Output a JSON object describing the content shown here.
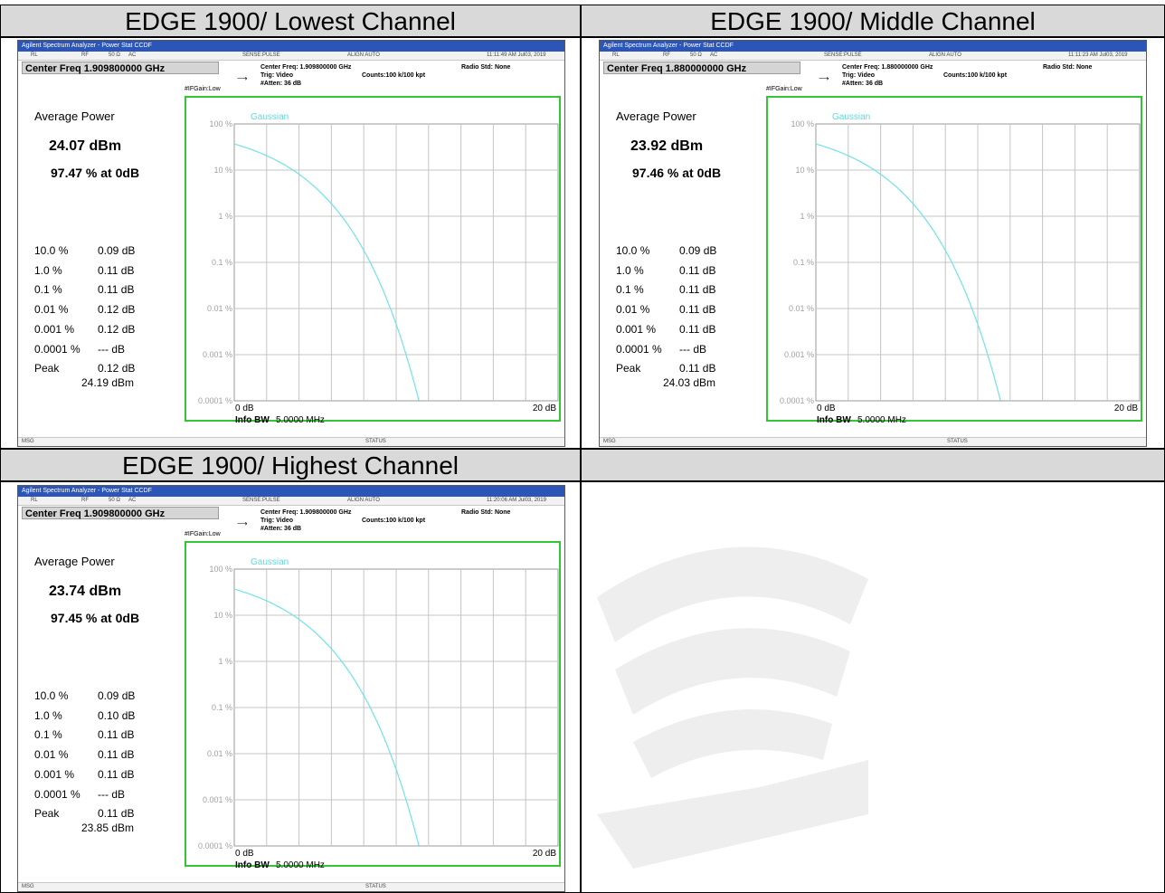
{
  "headers": {
    "lowest": "EDGE 1900/ Lowest Channel",
    "middle": "EDGE 1900/ Middle Channel",
    "highest": "EDGE 1900/ Highest Channel",
    "empty": ""
  },
  "colors": {
    "header_bg": "#d9d9d9",
    "frame_green": "#34c534",
    "curve": "#6fe3e8",
    "titlebar": "#2b56b8"
  },
  "common": {
    "app_title": "Agilent Spectrum Analyzer - Power Stat CCDF",
    "rl": "RL",
    "rf": "RF",
    "ohm": "50 Ω",
    "ac": "AC",
    "sense": "SENSE:PULSE",
    "align": "ALIGN AUTO",
    "trig": "Trig: Video",
    "atten": "#Atten: 36 dB",
    "counts": "Counts:100 k/100 kpt",
    "radio_std": "Radio Std: None",
    "ifgain": "#IFGain:Low",
    "avg_label": "Average Power",
    "gaussian": "Gaussian",
    "info_bw_label": "Info BW",
    "info_bw_value": "5.0000 MHz",
    "x_left": "0 dB",
    "x_right": "20 dB",
    "y_ticks": [
      "100 %",
      "10 %",
      "1 %",
      "0.1 %",
      "0.01 %",
      "0.001 %",
      "0.0001 %"
    ],
    "msg": "MSG",
    "status": "STATUS",
    "peak_label": "Peak",
    "prob_labels": [
      "10.0 %",
      "1.0 %",
      "0.1 %",
      "0.01 %",
      "0.001 %",
      "0.0001 %"
    ]
  },
  "panels": [
    {
      "time": "11:11:49 AM Jul03, 2019",
      "center_freq": "Center Freq 1.909800000 GHz",
      "center_freq_small": "Center Freq: 1.909800000 GHz",
      "avg_dbm": "24.07 dBm",
      "pct_at_0db": "97.47 % at 0dB",
      "values": [
        "0.09 dB",
        "0.11 dB",
        "0.11 dB",
        "0.12 dB",
        "0.12 dB",
        "--- dB"
      ],
      "peak_db": "0.12 dB",
      "peak_dbm": "24.19 dBm"
    },
    {
      "time": "11:11:23 AM Jul03, 2019",
      "center_freq": "Center Freq 1.880000000 GHz",
      "center_freq_small": "Center Freq: 1.880000000 GHz",
      "avg_dbm": "23.92 dBm",
      "pct_at_0db": "97.46 % at 0dB",
      "values": [
        "0.09 dB",
        "0.11 dB",
        "0.11 dB",
        "0.11 dB",
        "0.11 dB",
        "--- dB"
      ],
      "peak_db": "0.11 dB",
      "peak_dbm": "24.03 dBm"
    },
    {
      "time": "11:20:06 AM Jul03, 2019",
      "center_freq": "Center Freq 1.909800000 GHz",
      "center_freq_small": "Center Freq: 1.909800000 GHz",
      "avg_dbm": "23.74 dBm",
      "pct_at_0db": "97.45 % at 0dB",
      "values": [
        "0.09 dB",
        "0.10 dB",
        "0.11 dB",
        "0.11 dB",
        "0.11 dB",
        "--- dB"
      ],
      "peak_db": "0.11 dB",
      "peak_dbm": "23.85 dBm"
    }
  ]
}
